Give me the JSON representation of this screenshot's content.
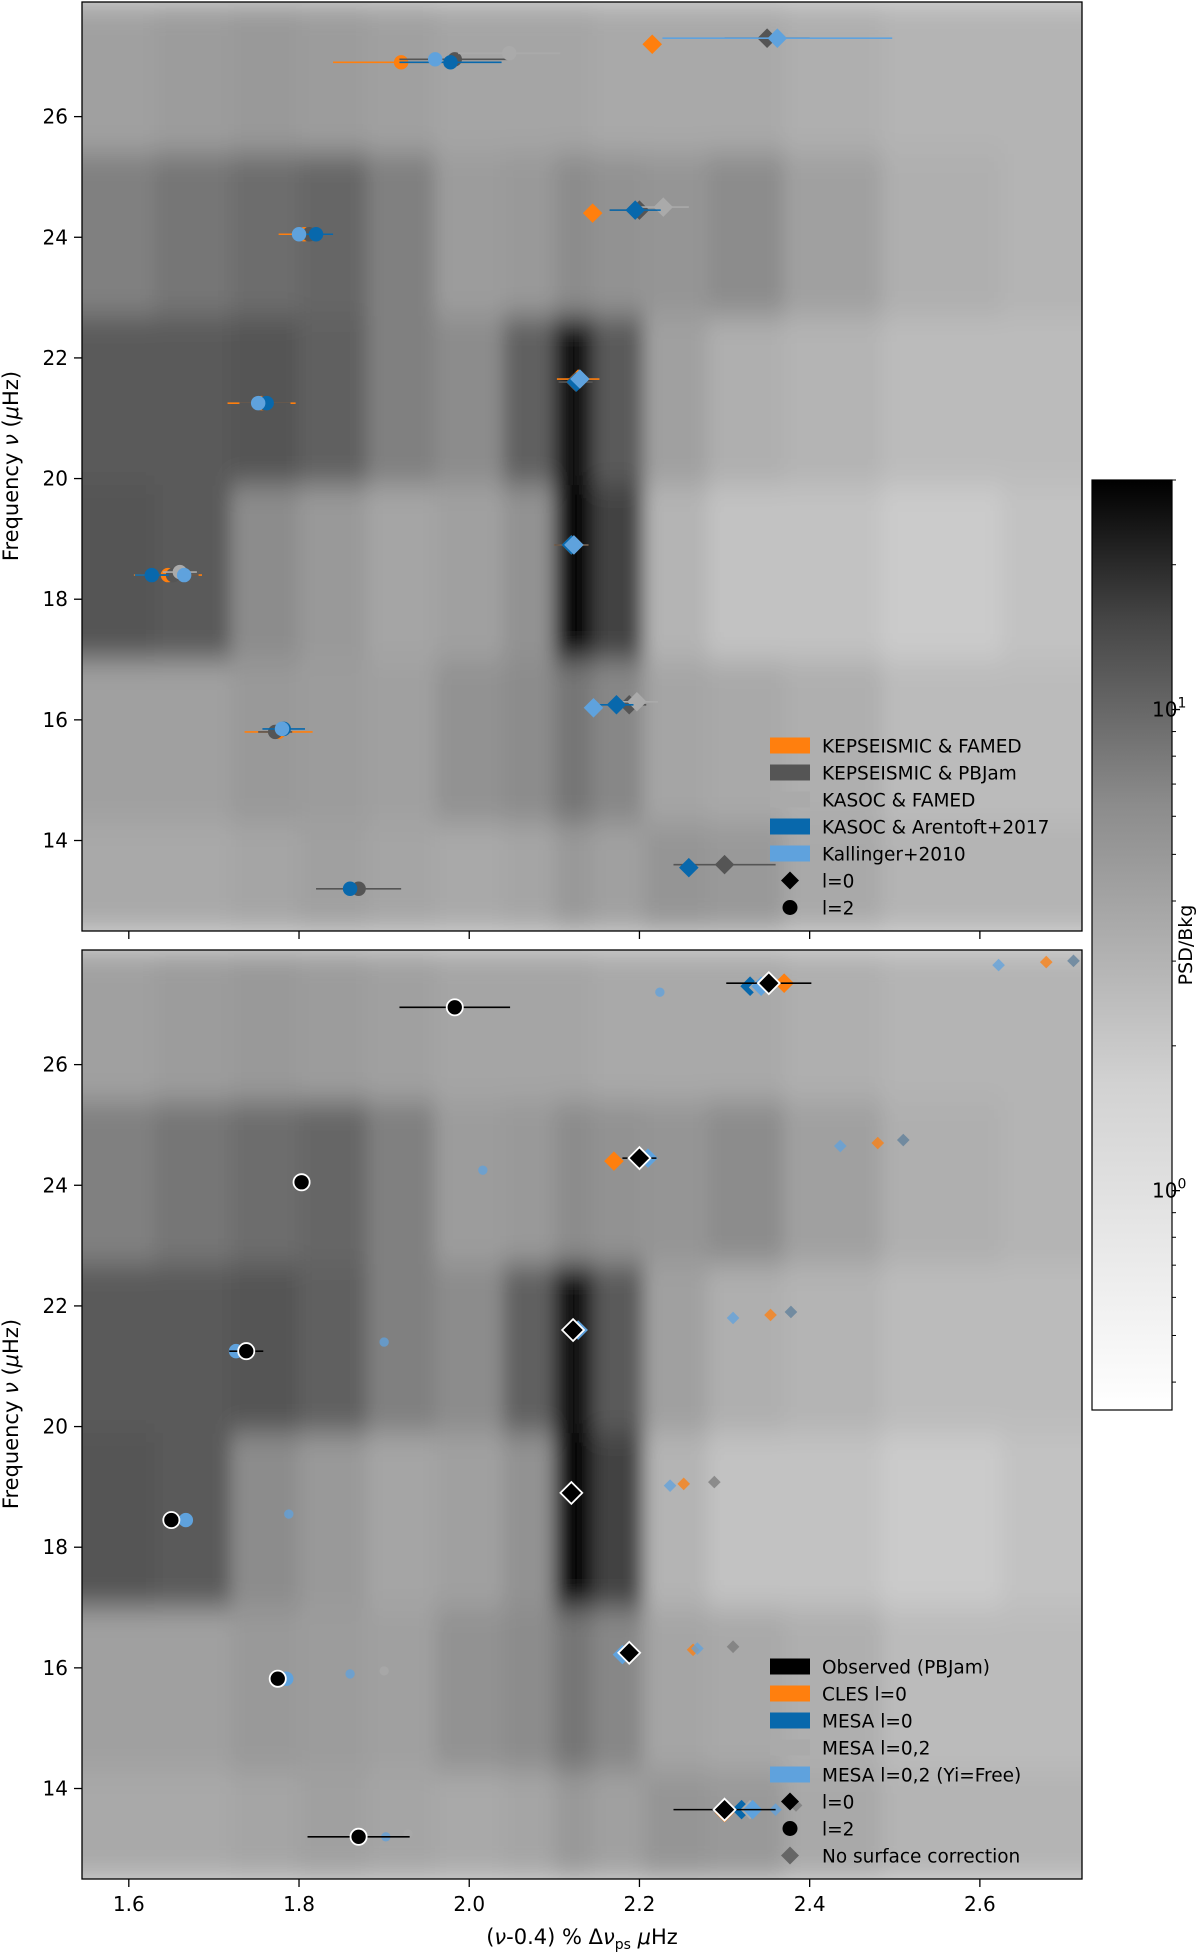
{
  "chart_data": [
    {
      "panel": "top",
      "type": "scatter",
      "title": "",
      "xlabel": "(ν-0.4) % Δν_ps μHz",
      "ylabel": "Frequency ν (μHz)",
      "xlim": [
        1.545,
        2.72
      ],
      "ylim": [
        12.5,
        27.9
      ],
      "yticks": [
        14,
        16,
        18,
        20,
        22,
        24,
        26
      ],
      "xticks": [
        1.6,
        1.8,
        2.0,
        2.2,
        2.4,
        2.6
      ],
      "legend_position": "lower right",
      "legend": [
        {
          "label": "KEPSEISMIC & FAMED",
          "kind": "patch",
          "color": "#ff7f0e"
        },
        {
          "label": "KEPSEISMIC & PBJam",
          "kind": "patch",
          "color": "#555555"
        },
        {
          "label": "KASOC & FAMED",
          "kind": "patch",
          "color": "#aaaaaa"
        },
        {
          "label": "KASOC & Arentoft+2017",
          "kind": "patch",
          "color": "#0868ac"
        },
        {
          "label": "Kallinger+2010",
          "kind": "patch",
          "color": "#5fa2dd"
        },
        {
          "label": "l=0",
          "kind": "marker",
          "marker": "diamond",
          "color": "#000000"
        },
        {
          "label": "l=2",
          "kind": "marker",
          "marker": "circle",
          "color": "#000000"
        }
      ],
      "series": [
        {
          "name": "KEPSEISMIC & FAMED",
          "color": "#ff7f0e",
          "points": [
            {
              "x": 1.92,
              "y": 26.9,
              "m": "c",
              "xerr": 0.08
            },
            {
              "x": 2.215,
              "y": 27.2,
              "m": "d"
            },
            {
              "x": 2.145,
              "y": 24.4,
              "m": "d"
            },
            {
              "x": 1.806,
              "y": 24.05,
              "m": "c",
              "xerr": 0.03
            },
            {
              "x": 2.128,
              "y": 21.65,
              "m": "d",
              "xerr": 0.025
            },
            {
              "x": 1.756,
              "y": 21.25,
              "m": "c",
              "xerr": 0.04
            },
            {
              "x": 2.12,
              "y": 18.9,
              "m": "d",
              "xerr": 0.02
            },
            {
              "x": 1.646,
              "y": 18.4,
              "m": "c",
              "xerr": 0.04
            },
            {
              "x": 1.776,
              "y": 15.8,
              "m": "c",
              "xerr": 0.04
            }
          ]
        },
        {
          "name": "KEPSEISMIC & PBJam",
          "color": "#555555",
          "points": [
            {
              "x": 1.983,
              "y": 26.95,
              "m": "c",
              "xerr": 0.065
            },
            {
              "x": 2.35,
              "y": 27.3,
              "m": "d",
              "xerr": 0.05
            },
            {
              "x": 2.2,
              "y": 24.45,
              "m": "d",
              "xerr": 0.035
            },
            {
              "x": 1.812,
              "y": 24.05,
              "m": "c",
              "xerr": 0.02
            },
            {
              "x": 2.125,
              "y": 21.6,
              "m": "d",
              "xerr": 0.02
            },
            {
              "x": 1.76,
              "y": 21.25,
              "m": "c",
              "xerr": 0.03
            },
            {
              "x": 2.12,
              "y": 18.9,
              "m": "d",
              "xerr": 0.02
            },
            {
              "x": 1.652,
              "y": 18.4,
              "m": "c",
              "xerr": 0.03
            },
            {
              "x": 2.188,
              "y": 16.25,
              "m": "d",
              "xerr": 0.02
            },
            {
              "x": 1.772,
              "y": 15.8,
              "m": "c",
              "xerr": 0.02
            },
            {
              "x": 2.3,
              "y": 13.6,
              "m": "d",
              "xerr": 0.06
            },
            {
              "x": 1.87,
              "y": 13.2,
              "m": "c",
              "xerr": 0.05
            }
          ]
        },
        {
          "name": "KASOC & FAMED",
          "color": "#aaaaaa",
          "points": [
            {
              "x": 2.047,
              "y": 27.05,
              "m": "c",
              "xerr": 0.06
            },
            {
              "x": 2.228,
              "y": 24.5,
              "m": "d",
              "xerr": 0.03
            },
            {
              "x": 2.197,
              "y": 16.3,
              "m": "d",
              "xerr": 0.025
            },
            {
              "x": 1.66,
              "y": 18.45,
              "m": "c",
              "xerr": 0.02
            }
          ]
        },
        {
          "name": "KASOC & Arentoft+2017",
          "color": "#0868ac",
          "points": [
            {
              "x": 1.978,
              "y": 26.9,
              "m": "c",
              "xerr": 0.06
            },
            {
              "x": 2.195,
              "y": 24.45,
              "m": "d",
              "xerr": 0.03
            },
            {
              "x": 1.82,
              "y": 24.05,
              "m": "c",
              "xerr": 0.02
            },
            {
              "x": 2.126,
              "y": 21.6,
              "m": "d"
            },
            {
              "x": 1.762,
              "y": 21.25,
              "m": "c"
            },
            {
              "x": 2.12,
              "y": 18.9,
              "m": "d"
            },
            {
              "x": 1.627,
              "y": 18.4,
              "m": "c",
              "xerr": 0.02
            },
            {
              "x": 2.173,
              "y": 16.25,
              "m": "d",
              "xerr": 0.02
            },
            {
              "x": 1.782,
              "y": 15.85,
              "m": "c",
              "xerr": 0.025
            },
            {
              "x": 2.258,
              "y": 13.55,
              "m": "d"
            },
            {
              "x": 1.86,
              "y": 13.2,
              "m": "c"
            }
          ]
        },
        {
          "name": "Kallinger+2010",
          "color": "#5fa2dd",
          "points": [
            {
              "x": 1.96,
              "y": 26.95,
              "m": "c"
            },
            {
              "x": 2.362,
              "y": 27.3,
              "m": "d",
              "xerr": 0.135
            },
            {
              "x": 1.8,
              "y": 24.05,
              "m": "c"
            },
            {
              "x": 2.13,
              "y": 21.65,
              "m": "d"
            },
            {
              "x": 1.752,
              "y": 21.25,
              "m": "c"
            },
            {
              "x": 2.123,
              "y": 18.9,
              "m": "d"
            },
            {
              "x": 1.665,
              "y": 18.4,
              "m": "c"
            },
            {
              "x": 2.146,
              "y": 16.2,
              "m": "d"
            },
            {
              "x": 1.78,
              "y": 15.85,
              "m": "c"
            }
          ]
        }
      ]
    },
    {
      "panel": "bottom",
      "type": "scatter",
      "title": "",
      "xlabel": "(ν-0.4) % Δν_ps μHz",
      "ylabel": "Frequency ν (μHz)",
      "xlim": [
        1.545,
        2.72
      ],
      "ylim": [
        12.5,
        27.9
      ],
      "yticks": [
        14,
        16,
        18,
        20,
        22,
        24,
        26
      ],
      "xticks": [
        1.6,
        1.8,
        2.0,
        2.2,
        2.4,
        2.6
      ],
      "legend_position": "lower right",
      "legend": [
        {
          "label": "Observed (PBJam)",
          "kind": "patch",
          "color": "#000000"
        },
        {
          "label": "CLES l=0",
          "kind": "patch",
          "color": "#ff7f0e"
        },
        {
          "label": "MESA l=0",
          "kind": "patch",
          "color": "#0868ac"
        },
        {
          "label": "MESA l=0,2",
          "kind": "patch",
          "color": "#aaaaaa"
        },
        {
          "label": "MESA l=0,2 (Yi=Free)",
          "kind": "patch",
          "color": "#5fa2dd"
        },
        {
          "label": "l=0",
          "kind": "marker",
          "marker": "diamond",
          "color": "#000000"
        },
        {
          "label": "l=2",
          "kind": "marker",
          "marker": "circle",
          "color": "#000000"
        },
        {
          "label": "No surface correction",
          "kind": "marker",
          "marker": "diamond",
          "color": "#666666"
        }
      ],
      "series": [
        {
          "name": "No surface correction",
          "color": "#7a7a7a",
          "faded": true,
          "points": [
            {
              "x": 2.622,
              "y": 27.65,
              "m": "d",
              "c": "#5fa2dd"
            },
            {
              "x": 2.678,
              "y": 27.7,
              "m": "d",
              "c": "#ff7f0e"
            },
            {
              "x": 2.71,
              "y": 27.72,
              "m": "d",
              "c": "#5c7d99"
            },
            {
              "x": 2.224,
              "y": 27.2,
              "m": "c",
              "c": "#5fa2dd"
            },
            {
              "x": 2.436,
              "y": 24.65,
              "m": "d",
              "c": "#5fa2dd"
            },
            {
              "x": 2.48,
              "y": 24.7,
              "m": "d",
              "c": "#ff7f0e"
            },
            {
              "x": 2.51,
              "y": 24.75,
              "m": "d",
              "c": "#5c7d99"
            },
            {
              "x": 2.016,
              "y": 24.25,
              "m": "c",
              "c": "#5fa2dd"
            },
            {
              "x": 2.31,
              "y": 21.8,
              "m": "d",
              "c": "#5fa2dd"
            },
            {
              "x": 2.354,
              "y": 21.85,
              "m": "d",
              "c": "#ff7f0e"
            },
            {
              "x": 2.378,
              "y": 21.9,
              "m": "d",
              "c": "#5c7d99"
            },
            {
              "x": 1.9,
              "y": 21.4,
              "m": "c",
              "c": "#5fa2dd"
            },
            {
              "x": 2.236,
              "y": 19.02,
              "m": "d",
              "c": "#5fa2dd"
            },
            {
              "x": 2.252,
              "y": 19.05,
              "m": "d",
              "c": "#ff7f0e"
            },
            {
              "x": 2.288,
              "y": 19.08,
              "m": "d",
              "c": "#7a7a7a"
            },
            {
              "x": 1.788,
              "y": 18.55,
              "m": "c",
              "c": "#5fa2dd"
            },
            {
              "x": 2.263,
              "y": 16.3,
              "m": "d",
              "c": "#ff7f0e"
            },
            {
              "x": 2.268,
              "y": 16.32,
              "m": "d",
              "c": "#5fa2dd"
            },
            {
              "x": 2.31,
              "y": 16.35,
              "m": "d",
              "c": "#7a7a7a"
            },
            {
              "x": 1.86,
              "y": 15.9,
              "m": "c",
              "c": "#5fa2dd"
            },
            {
              "x": 1.9,
              "y": 15.95,
              "m": "c",
              "c": "#aaaaaa"
            },
            {
              "x": 2.36,
              "y": 13.65,
              "m": "d",
              "c": "#5fa2dd"
            },
            {
              "x": 2.384,
              "y": 13.72,
              "m": "d",
              "c": "#7a7a7a"
            },
            {
              "x": 1.902,
              "y": 13.2,
              "m": "c",
              "c": "#5fa2dd"
            },
            {
              "x": 1.928,
              "y": 13.25,
              "m": "c",
              "c": "#aaaaaa"
            }
          ]
        },
        {
          "name": "CLES l=0",
          "color": "#ff7f0e",
          "points": [
            {
              "x": 2.37,
              "y": 27.35,
              "m": "d"
            },
            {
              "x": 2.17,
              "y": 24.4,
              "m": "d"
            },
            {
              "x": 2.3,
              "y": 13.6,
              "m": "d"
            }
          ]
        },
        {
          "name": "MESA l=0",
          "color": "#0868ac",
          "points": [
            {
              "x": 2.33,
              "y": 27.3,
              "m": "d"
            },
            {
              "x": 2.2,
              "y": 24.45,
              "m": "d"
            },
            {
              "x": 2.124,
              "y": 21.6,
              "m": "d"
            },
            {
              "x": 2.122,
              "y": 18.9,
              "m": "d"
            },
            {
              "x": 2.186,
              "y": 16.25,
              "m": "d"
            },
            {
              "x": 2.32,
              "y": 13.65,
              "m": "d"
            }
          ]
        },
        {
          "name": "MESA l=0,2",
          "color": "#aaaaaa",
          "points": [
            {
              "x": 2.34,
              "y": 27.28,
              "m": "d"
            },
            {
              "x": 2.21,
              "y": 24.45,
              "m": "d"
            },
            {
              "x": 1.805,
              "y": 24.05,
              "m": "c"
            },
            {
              "x": 2.33,
              "y": 13.65,
              "m": "d"
            }
          ]
        },
        {
          "name": "MESA l=0,2 (Yi=Free)",
          "color": "#5fa2dd",
          "points": [
            {
              "x": 2.343,
              "y": 27.3,
              "m": "d"
            },
            {
              "x": 2.21,
              "y": 24.45,
              "m": "d"
            },
            {
              "x": 1.803,
              "y": 24.05,
              "m": "c"
            },
            {
              "x": 2.128,
              "y": 21.6,
              "m": "d"
            },
            {
              "x": 1.726,
              "y": 21.25,
              "m": "c"
            },
            {
              "x": 2.119,
              "y": 18.9,
              "m": "d"
            },
            {
              "x": 1.667,
              "y": 18.45,
              "m": "c"
            },
            {
              "x": 2.18,
              "y": 16.22,
              "m": "d"
            },
            {
              "x": 1.785,
              "y": 15.82,
              "m": "c"
            },
            {
              "x": 2.333,
              "y": 13.65,
              "m": "d"
            },
            {
              "x": 1.872,
              "y": 13.2,
              "m": "c"
            }
          ]
        },
        {
          "name": "Observed (PBJam)",
          "color": "#000000",
          "outlined": true,
          "points": [
            {
              "x": 2.352,
              "y": 27.35,
              "m": "d",
              "xerr": 0.05
            },
            {
              "x": 1.983,
              "y": 26.95,
              "m": "c",
              "xerr": 0.065
            },
            {
              "x": 2.2,
              "y": 24.45,
              "m": "d",
              "xerr": 0.02
            },
            {
              "x": 1.803,
              "y": 24.05,
              "m": "c",
              "xerr": 0.01
            },
            {
              "x": 2.122,
              "y": 21.6,
              "m": "d",
              "xerr": 0.01
            },
            {
              "x": 1.738,
              "y": 21.25,
              "m": "c",
              "xerr": 0.02
            },
            {
              "x": 2.12,
              "y": 18.9,
              "m": "d",
              "xerr": 0.01
            },
            {
              "x": 1.65,
              "y": 18.45,
              "m": "c"
            },
            {
              "x": 2.188,
              "y": 16.25,
              "m": "d"
            },
            {
              "x": 1.775,
              "y": 15.82,
              "m": "c",
              "xerr": 0.01
            },
            {
              "x": 2.3,
              "y": 13.65,
              "m": "d",
              "xerr": 0.06
            },
            {
              "x": 1.87,
              "y": 13.2,
              "m": "c",
              "xerr": 0.06
            }
          ]
        }
      ]
    }
  ],
  "colorbar": {
    "label": "PSD/Bkg",
    "scale": "log",
    "range": [
      0.35,
      30
    ],
    "ticks": [
      {
        "value": 10,
        "base": "10",
        "exp": "1"
      },
      {
        "value": 1,
        "base": "10",
        "exp": "0"
      }
    ]
  },
  "background_psd": {
    "columns": [
      1.58,
      1.68,
      1.76,
      1.84,
      1.92,
      2.0,
      2.08,
      2.12,
      2.17,
      2.24,
      2.32,
      2.42,
      2.55,
      2.7
    ],
    "rows": [
      {
        "y0": 12.5,
        "y1": 14.3,
        "v": [
          1.2,
          1.2,
          1.3,
          1.4,
          1.3,
          1.2,
          1.3,
          1.6,
          1.4,
          1.7,
          1.6,
          1.2,
          1.0,
          1.0
        ]
      },
      {
        "y0": 14.3,
        "y1": 17.0,
        "v": [
          1.4,
          1.4,
          1.6,
          1.5,
          1.4,
          1.8,
          2.0,
          3.0,
          2.2,
          1.3,
          1.2,
          1.1,
          0.9,
          0.9
        ]
      },
      {
        "y0": 17.0,
        "y1": 19.9,
        "v": [
          5.5,
          5.0,
          2.0,
          1.6,
          1.3,
          1.4,
          1.8,
          30.0,
          8.0,
          1.0,
          0.8,
          0.8,
          0.7,
          0.8
        ]
      },
      {
        "y0": 19.9,
        "y1": 22.7,
        "v": [
          5.0,
          5.0,
          5.5,
          4.5,
          2.5,
          2.0,
          4.5,
          22.0,
          5.0,
          1.4,
          1.1,
          1.0,
          0.9,
          0.9
        ]
      },
      {
        "y0": 22.7,
        "y1": 25.4,
        "v": [
          2.5,
          3.0,
          3.5,
          4.0,
          2.5,
          1.5,
          1.6,
          2.0,
          1.8,
          1.7,
          2.0,
          1.4,
          1.1,
          1.0
        ]
      },
      {
        "y0": 25.4,
        "y1": 27.9,
        "v": [
          1.4,
          1.5,
          1.6,
          1.5,
          1.4,
          1.3,
          1.3,
          1.3,
          1.2,
          1.2,
          1.2,
          1.1,
          1.0,
          1.0
        ]
      }
    ]
  }
}
